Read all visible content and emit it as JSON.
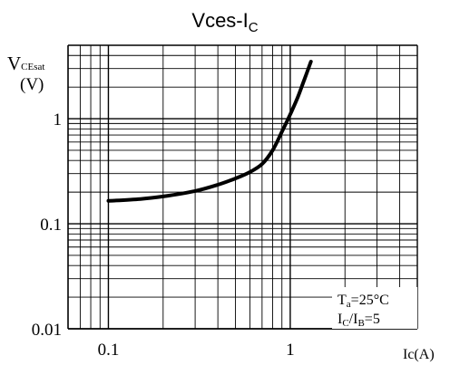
{
  "chart_data": {
    "type": "line",
    "title_main": "Vces-I",
    "title_sub": "C",
    "ylabel_main": "V",
    "ylabel_sub": "CEsat",
    "ylabel_unit": "(V)",
    "xlabel": "Ic(A)",
    "x_scale": "log",
    "y_scale": "log",
    "xlim": [
      0.06,
      5
    ],
    "ylim": [
      0.01,
      5
    ],
    "grid": true,
    "x_ticks": [
      {
        "value": 0.1,
        "label": "0.1"
      },
      {
        "value": 1,
        "label": "1"
      }
    ],
    "y_ticks": [
      {
        "value": 0.01,
        "label": "0.01"
      },
      {
        "value": 0.1,
        "label": "0.1"
      },
      {
        "value": 1,
        "label": "1"
      }
    ],
    "series": [
      {
        "x": [
          0.1,
          0.15,
          0.2,
          0.3,
          0.4,
          0.5,
          0.6,
          0.7,
          0.8,
          0.9,
          1.0,
          1.1,
          1.2,
          1.3
        ],
        "y": [
          0.165,
          0.172,
          0.182,
          0.205,
          0.235,
          0.27,
          0.31,
          0.37,
          0.5,
          0.75,
          1.1,
          1.6,
          2.4,
          3.5
        ]
      }
    ],
    "annotation": {
      "line1_main": "T",
      "line1_sub": "a",
      "line1_rest": "=25°C",
      "line2_main1": "I",
      "line2_sub1": "C",
      "line2_mid": "/I",
      "line2_sub2": "B",
      "line2_rest": "=5"
    }
  }
}
